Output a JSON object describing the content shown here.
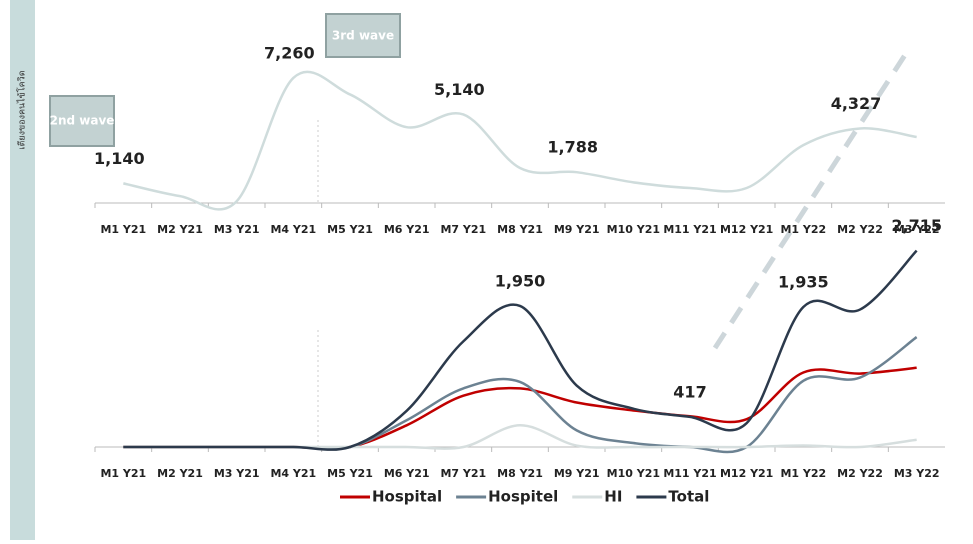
{
  "chart_data": [
    {
      "type": "line",
      "y_label": "เตียงของคนไข้โควิด",
      "categories": [
        "M1 Y21",
        "M2 Y21",
        "M3 Y21",
        "M4 Y21",
        "M5 Y21",
        "M6 Y21",
        "M7 Y21",
        "M8 Y21",
        "M9 Y21",
        "M10 Y21",
        "M11 Y21",
        "M12 Y21",
        "M1 Y22",
        "M2 Y22",
        "M3 Y22"
      ],
      "values": [
        1140,
        400,
        100,
        7260,
        6300,
        4400,
        5140,
        2030,
        1788,
        1200,
        870,
        870,
        3360,
        4327,
        3830
      ],
      "value_labels": [
        "1,140",
        null,
        null,
        "7,260",
        null,
        null,
        "5,140",
        null,
        "1,788",
        null,
        null,
        null,
        null,
        "4,327",
        null
      ],
      "color": "#cfdcdc",
      "ylim": [
        0,
        8300
      ],
      "annotations": [
        "2nd wave",
        "3rd wave"
      ]
    },
    {
      "type": "line",
      "categories": [
        "M1 Y21",
        "M2 Y21",
        "M3 Y21",
        "M4 Y21",
        "M5 Y21",
        "M6 Y21",
        "M7 Y21",
        "M8 Y21",
        "M9 Y21",
        "M10 Y21",
        "M11 Y21",
        "M12 Y21",
        "M1 Y22",
        "M2 Y22",
        "M3 Y22"
      ],
      "series": [
        {
          "name": "Hospital",
          "color": "#c00000",
          "values": [
            0,
            0,
            0,
            0,
            0,
            300,
            710,
            810,
            615,
            505,
            425,
            385,
            1030,
            1015,
            1095
          ]
        },
        {
          "name": "Hospitel",
          "color": "#6c8292",
          "values": [
            0,
            0,
            0,
            0,
            0,
            370,
            810,
            900,
            230,
            55,
            0,
            0,
            915,
            960,
            1520
          ]
        },
        {
          "name": "HI",
          "color": "#d6dede",
          "values": [
            0,
            0,
            0,
            0,
            0,
            0,
            0,
            300,
            20,
            0,
            0,
            0,
            20,
            0,
            100
          ]
        },
        {
          "name": "Total",
          "color": "#2c3a4c",
          "values": [
            0,
            0,
            0,
            0,
            0,
            500,
            1460,
            1950,
            850,
            530,
            417,
            330,
            1935,
            1900,
            2715
          ],
          "value_labels": [
            null,
            null,
            null,
            null,
            null,
            null,
            null,
            "1,950",
            null,
            null,
            "417",
            null,
            "1,935",
            null,
            "2,715"
          ]
        }
      ],
      "ylim": [
        0,
        3000
      ],
      "legend": "bottom"
    }
  ]
}
